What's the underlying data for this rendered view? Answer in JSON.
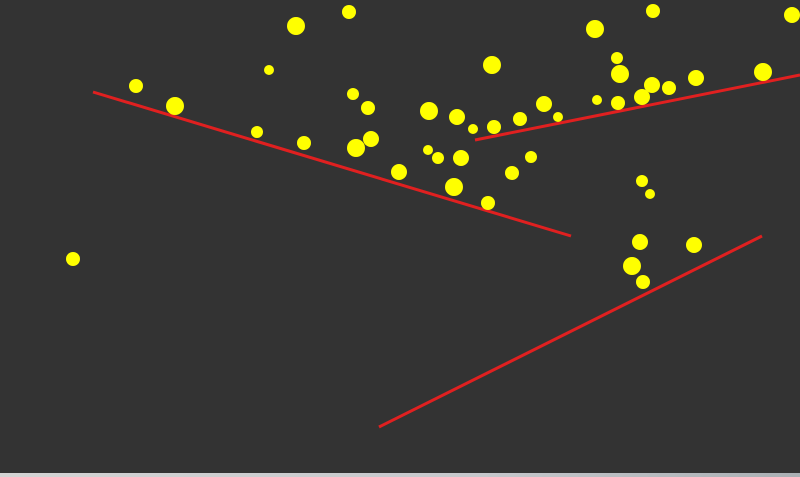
{
  "game": {
    "background_color": "#333333",
    "ball_color": "#ffff00",
    "line_color": "#e02020"
  }
}
